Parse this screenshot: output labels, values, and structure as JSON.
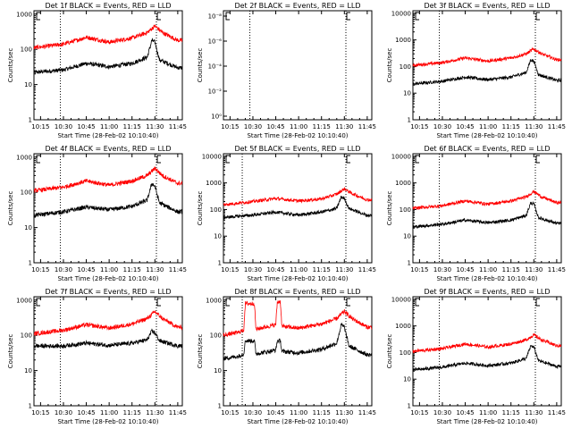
{
  "figure": {
    "x_axis_label": "Start Time (28-Feb-02 10:10:40)",
    "y_axis_label": "Counts/sec"
  },
  "colors": {
    "events": "#000000",
    "lld": "#ff0000"
  },
  "chart_data": [
    {
      "title": "Det 1f BLACK = Events, RED = LLD",
      "type": "line",
      "x_ticks": [
        "10:15",
        "10:30",
        "10:45",
        "11:00",
        "11:15",
        "11:30",
        "11:45"
      ],
      "y_ticks": [
        "1",
        "10",
        "100",
        "1000"
      ],
      "ylim": [
        1,
        1000
      ],
      "yscale": "log",
      "dotted_time_markers": [
        "10:28",
        "11:31"
      ],
      "series": [
        {
          "color": "#000000",
          "values": [
            {
              "t": "10:10",
              "y": 22
            },
            {
              "t": "10:30",
              "y": 26
            },
            {
              "t": "10:45",
              "y": 40
            },
            {
              "t": "11:00",
              "y": 32
            },
            {
              "t": "11:15",
              "y": 40
            },
            {
              "t": "11:25",
              "y": 60
            },
            {
              "t": "11:28",
              "y": 180
            },
            {
              "t": "11:30",
              "y": 160
            },
            {
              "t": "11:33",
              "y": 50
            },
            {
              "t": "11:45",
              "y": 30
            }
          ]
        },
        {
          "color": "#ff0000",
          "values": [
            {
              "t": "10:10",
              "y": 110
            },
            {
              "t": "10:30",
              "y": 140
            },
            {
              "t": "10:45",
              "y": 220
            },
            {
              "t": "11:00",
              "y": 160
            },
            {
              "t": "11:15",
              "y": 210
            },
            {
              "t": "11:25",
              "y": 300
            },
            {
              "t": "11:30",
              "y": 460
            },
            {
              "t": "11:35",
              "y": 300
            },
            {
              "t": "11:45",
              "y": 180
            }
          ]
        }
      ]
    },
    {
      "title": "Det 2f BLACK = Events, RED = LLD",
      "type": "line",
      "x_ticks": [
        "10:15",
        "10:30",
        "10:45",
        "11:00",
        "11:15",
        "11:30",
        "11:45"
      ],
      "y_ticks": [
        "10⁰",
        "10⁻²",
        "10⁻⁴",
        "10⁻⁶",
        "10⁻⁸"
      ],
      "yscale": "log",
      "dotted_time_markers": [
        "10:28",
        "11:31"
      ],
      "series": []
    },
    {
      "title": "Det 3f BLACK = Events, RED = LLD",
      "type": "line",
      "x_ticks": [
        "10:15",
        "10:30",
        "10:45",
        "11:00",
        "11:15",
        "11:30",
        "11:45"
      ],
      "y_ticks": [
        "1",
        "10",
        "100",
        "1000",
        "10000"
      ],
      "ylim": [
        1,
        10000
      ],
      "yscale": "log",
      "dotted_time_markers": [
        "10:28",
        "11:31"
      ],
      "series": [
        {
          "color": "#000000",
          "values": [
            {
              "t": "10:10",
              "y": 22
            },
            {
              "t": "10:30",
              "y": 28
            },
            {
              "t": "10:45",
              "y": 40
            },
            {
              "t": "11:00",
              "y": 32
            },
            {
              "t": "11:15",
              "y": 40
            },
            {
              "t": "11:25",
              "y": 60
            },
            {
              "t": "11:28",
              "y": 180
            },
            {
              "t": "11:30",
              "y": 160
            },
            {
              "t": "11:33",
              "y": 50
            },
            {
              "t": "11:45",
              "y": 30
            }
          ]
        },
        {
          "color": "#ff0000",
          "values": [
            {
              "t": "10:10",
              "y": 110
            },
            {
              "t": "10:30",
              "y": 140
            },
            {
              "t": "10:45",
              "y": 210
            },
            {
              "t": "11:00",
              "y": 160
            },
            {
              "t": "11:15",
              "y": 210
            },
            {
              "t": "11:25",
              "y": 300
            },
            {
              "t": "11:30",
              "y": 460
            },
            {
              "t": "11:35",
              "y": 300
            },
            {
              "t": "11:45",
              "y": 180
            }
          ]
        }
      ]
    },
    {
      "title": "Det 4f BLACK = Events, RED = LLD",
      "type": "line",
      "x_ticks": [
        "10:15",
        "10:30",
        "10:45",
        "11:00",
        "11:15",
        "11:30",
        "11:45"
      ],
      "y_ticks": [
        "1",
        "10",
        "100",
        "1000"
      ],
      "ylim": [
        1,
        1000
      ],
      "yscale": "log",
      "dotted_time_markers": [
        "10:28",
        "11:31"
      ],
      "series": [
        {
          "color": "#000000",
          "values": [
            {
              "t": "10:10",
              "y": 22
            },
            {
              "t": "10:30",
              "y": 28
            },
            {
              "t": "10:45",
              "y": 38
            },
            {
              "t": "11:00",
              "y": 32
            },
            {
              "t": "11:15",
              "y": 40
            },
            {
              "t": "11:25",
              "y": 60
            },
            {
              "t": "11:28",
              "y": 180
            },
            {
              "t": "11:30",
              "y": 150
            },
            {
              "t": "11:33",
              "y": 50
            },
            {
              "t": "11:45",
              "y": 28
            }
          ]
        },
        {
          "color": "#ff0000",
          "values": [
            {
              "t": "10:10",
              "y": 110
            },
            {
              "t": "10:30",
              "y": 140
            },
            {
              "t": "10:45",
              "y": 210
            },
            {
              "t": "11:00",
              "y": 160
            },
            {
              "t": "11:15",
              "y": 210
            },
            {
              "t": "11:25",
              "y": 300
            },
            {
              "t": "11:30",
              "y": 480
            },
            {
              "t": "11:35",
              "y": 300
            },
            {
              "t": "11:45",
              "y": 180
            }
          ]
        }
      ]
    },
    {
      "title": "Det 5f BLACK = Events, RED = LLD",
      "type": "line",
      "x_ticks": [
        "10:15",
        "10:30",
        "10:45",
        "11:00",
        "11:15",
        "11:30",
        "11:45"
      ],
      "y_ticks": [
        "1",
        "10",
        "100",
        "1000",
        "10000"
      ],
      "ylim": [
        1,
        10000
      ],
      "yscale": "log",
      "dotted_time_markers": [
        "10:23",
        "11:31"
      ],
      "series": [
        {
          "color": "#000000",
          "values": [
            {
              "t": "10:10",
              "y": 50
            },
            {
              "t": "10:30",
              "y": 62
            },
            {
              "t": "10:45",
              "y": 80
            },
            {
              "t": "11:00",
              "y": 62
            },
            {
              "t": "11:15",
              "y": 80
            },
            {
              "t": "11:25",
              "y": 110
            },
            {
              "t": "11:28",
              "y": 300
            },
            {
              "t": "11:30",
              "y": 260
            },
            {
              "t": "11:33",
              "y": 110
            },
            {
              "t": "11:45",
              "y": 60
            }
          ]
        },
        {
          "color": "#ff0000",
          "values": [
            {
              "t": "10:10",
              "y": 150
            },
            {
              "t": "10:30",
              "y": 200
            },
            {
              "t": "10:45",
              "y": 260
            },
            {
              "t": "11:00",
              "y": 210
            },
            {
              "t": "11:15",
              "y": 250
            },
            {
              "t": "11:25",
              "y": 380
            },
            {
              "t": "11:30",
              "y": 600
            },
            {
              "t": "11:35",
              "y": 400
            },
            {
              "t": "11:45",
              "y": 230
            }
          ]
        }
      ]
    },
    {
      "title": "Det 6f BLACK = Events, RED = LLD",
      "type": "line",
      "x_ticks": [
        "10:15",
        "10:30",
        "10:45",
        "11:00",
        "11:15",
        "11:30",
        "11:45"
      ],
      "y_ticks": [
        "1",
        "10",
        "100",
        "1000",
        "10000"
      ],
      "ylim": [
        1,
        10000
      ],
      "yscale": "log",
      "dotted_time_markers": [
        "10:28",
        "11:31"
      ],
      "series": [
        {
          "color": "#000000",
          "values": [
            {
              "t": "10:10",
              "y": 22
            },
            {
              "t": "10:30",
              "y": 28
            },
            {
              "t": "10:45",
              "y": 40
            },
            {
              "t": "11:00",
              "y": 32
            },
            {
              "t": "11:15",
              "y": 40
            },
            {
              "t": "11:25",
              "y": 60
            },
            {
              "t": "11:28",
              "y": 180
            },
            {
              "t": "11:30",
              "y": 160
            },
            {
              "t": "11:33",
              "y": 50
            },
            {
              "t": "11:45",
              "y": 30
            }
          ]
        },
        {
          "color": "#ff0000",
          "values": [
            {
              "t": "10:10",
              "y": 110
            },
            {
              "t": "10:30",
              "y": 140
            },
            {
              "t": "10:45",
              "y": 210
            },
            {
              "t": "11:00",
              "y": 160
            },
            {
              "t": "11:15",
              "y": 210
            },
            {
              "t": "11:25",
              "y": 300
            },
            {
              "t": "11:30",
              "y": 480
            },
            {
              "t": "11:35",
              "y": 300
            },
            {
              "t": "11:45",
              "y": 180
            }
          ]
        }
      ]
    },
    {
      "title": "Det 7f BLACK = Events, RED = LLD",
      "type": "line",
      "x_ticks": [
        "10:15",
        "10:30",
        "10:45",
        "11:00",
        "11:15",
        "11:30",
        "11:45"
      ],
      "y_ticks": [
        "1",
        "10",
        "100",
        "1000"
      ],
      "ylim": [
        1,
        1000
      ],
      "yscale": "log",
      "dotted_time_markers": [
        "10:28",
        "11:31"
      ],
      "series": [
        {
          "color": "#000000",
          "values": [
            {
              "t": "10:10",
              "y": 50
            },
            {
              "t": "10:30",
              "y": 50
            },
            {
              "t": "10:45",
              "y": 60
            },
            {
              "t": "11:00",
              "y": 52
            },
            {
              "t": "11:15",
              "y": 60
            },
            {
              "t": "11:25",
              "y": 75
            },
            {
              "t": "11:28",
              "y": 130
            },
            {
              "t": "11:30",
              "y": 120
            },
            {
              "t": "11:33",
              "y": 70
            },
            {
              "t": "11:45",
              "y": 50
            }
          ]
        },
        {
          "color": "#ff0000",
          "values": [
            {
              "t": "10:10",
              "y": 110
            },
            {
              "t": "10:30",
              "y": 140
            },
            {
              "t": "10:45",
              "y": 200
            },
            {
              "t": "11:00",
              "y": 160
            },
            {
              "t": "11:15",
              "y": 210
            },
            {
              "t": "11:25",
              "y": 300
            },
            {
              "t": "11:30",
              "y": 470
            },
            {
              "t": "11:35",
              "y": 300
            },
            {
              "t": "11:45",
              "y": 170
            }
          ]
        }
      ]
    },
    {
      "title": "Det 8f BLACK = Events, RED = LLD",
      "type": "line",
      "x_ticks": [
        "10:15",
        "10:30",
        "10:45",
        "11:00",
        "11:15",
        "11:30",
        "11:45"
      ],
      "y_ticks": [
        "1",
        "10",
        "100",
        "1000"
      ],
      "ylim": [
        1,
        1000
      ],
      "yscale": "log",
      "dotted_time_markers": [
        "10:23",
        "11:31"
      ],
      "series": [
        {
          "color": "#000000",
          "values": [
            {
              "t": "10:10",
              "y": 22
            },
            {
              "t": "10:20",
              "y": 25
            },
            {
              "t": "10:24",
              "y": 30
            },
            {
              "t": "10:25",
              "y": 70
            },
            {
              "t": "10:31",
              "y": 70
            },
            {
              "t": "10:32",
              "y": 30
            },
            {
              "t": "10:45",
              "y": 38
            },
            {
              "t": "10:46",
              "y": 70
            },
            {
              "t": "10:48",
              "y": 70
            },
            {
              "t": "10:49",
              "y": 35
            },
            {
              "t": "11:00",
              "y": 32
            },
            {
              "t": "11:15",
              "y": 40
            },
            {
              "t": "11:25",
              "y": 60
            },
            {
              "t": "11:28",
              "y": 200
            },
            {
              "t": "11:30",
              "y": 170
            },
            {
              "t": "11:33",
              "y": 50
            },
            {
              "t": "11:45",
              "y": 28
            }
          ]
        },
        {
          "color": "#ff0000",
          "values": [
            {
              "t": "10:10",
              "y": 100
            },
            {
              "t": "10:20",
              "y": 120
            },
            {
              "t": "10:24",
              "y": 140
            },
            {
              "t": "10:25",
              "y": 800
            },
            {
              "t": "10:31",
              "y": 800
            },
            {
              "t": "10:32",
              "y": 150
            },
            {
              "t": "10:45",
              "y": 200
            },
            {
              "t": "10:46",
              "y": 900
            },
            {
              "t": "10:48",
              "y": 900
            },
            {
              "t": "10:49",
              "y": 180
            },
            {
              "t": "11:00",
              "y": 160
            },
            {
              "t": "11:15",
              "y": 210
            },
            {
              "t": "11:25",
              "y": 300
            },
            {
              "t": "11:30",
              "y": 480
            },
            {
              "t": "11:35",
              "y": 300
            },
            {
              "t": "11:45",
              "y": 170
            }
          ]
        }
      ]
    },
    {
      "title": "Det 9f BLACK = Events, RED = LLD",
      "type": "line",
      "x_ticks": [
        "10:15",
        "10:30",
        "10:45",
        "11:00",
        "11:15",
        "11:30",
        "11:45"
      ],
      "y_ticks": [
        "1",
        "10",
        "100",
        "1000",
        "10000"
      ],
      "ylim": [
        1,
        10000
      ],
      "yscale": "log",
      "dotted_time_markers": [
        "10:28",
        "11:31"
      ],
      "series": [
        {
          "color": "#000000",
          "values": [
            {
              "t": "10:10",
              "y": 22
            },
            {
              "t": "10:30",
              "y": 28
            },
            {
              "t": "10:45",
              "y": 40
            },
            {
              "t": "11:00",
              "y": 32
            },
            {
              "t": "11:15",
              "y": 40
            },
            {
              "t": "11:25",
              "y": 60
            },
            {
              "t": "11:28",
              "y": 180
            },
            {
              "t": "11:30",
              "y": 160
            },
            {
              "t": "11:33",
              "y": 50
            },
            {
              "t": "11:45",
              "y": 30
            }
          ]
        },
        {
          "color": "#ff0000",
          "values": [
            {
              "t": "10:10",
              "y": 110
            },
            {
              "t": "10:30",
              "y": 140
            },
            {
              "t": "10:45",
              "y": 210
            },
            {
              "t": "11:00",
              "y": 160
            },
            {
              "t": "11:15",
              "y": 210
            },
            {
              "t": "11:25",
              "y": 300
            },
            {
              "t": "11:30",
              "y": 460
            },
            {
              "t": "11:35",
              "y": 300
            },
            {
              "t": "11:45",
              "y": 180
            }
          ]
        }
      ]
    }
  ]
}
